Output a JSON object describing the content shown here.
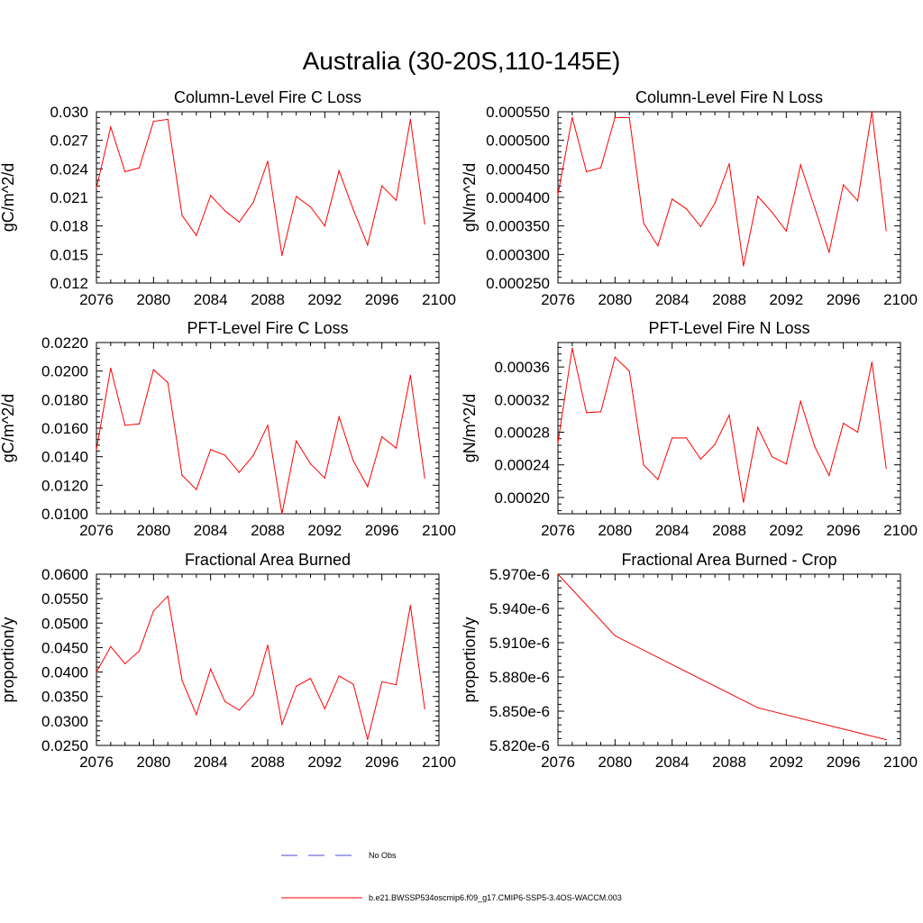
{
  "title": "Australia (30-20S,110-145E)",
  "colors": {
    "series": "#ff0000",
    "obs": "#4a4ad0",
    "axis": "#000000"
  },
  "legend": {
    "entries": [
      {
        "label": "No Obs",
        "style": "dashed",
        "color": "#4a4ad0"
      },
      {
        "label": "b.e21.BWSSP534oscmip6.f09_g17.CMIP6-SSP5-3.4OS-WACCM.003",
        "style": "solid",
        "color": "#ff0000"
      }
    ]
  },
  "chart_data": [
    {
      "type": "line",
      "title": "Column-Level Fire C Loss",
      "ylabel": "gC/m^2/d",
      "xlim": [
        2076,
        2100
      ],
      "xticks": [
        "2076",
        "2080",
        "2084",
        "2088",
        "2092",
        "2096",
        "2100"
      ],
      "ylim": [
        0.012,
        0.03
      ],
      "yticks": [
        "0.030",
        "0.027",
        "0.024",
        "0.021",
        "0.018",
        "0.015",
        "0.012"
      ],
      "x": [
        2076,
        2077,
        2078,
        2079,
        2080,
        2081,
        2082,
        2083,
        2084,
        2085,
        2086,
        2087,
        2088,
        2089,
        2090,
        2091,
        2092,
        2093,
        2094,
        2095,
        2096,
        2097,
        2098,
        2099
      ],
      "values": [
        0.022,
        0.0284,
        0.0237,
        0.0241,
        0.029,
        0.0292,
        0.0191,
        0.017,
        0.0212,
        0.0196,
        0.0184,
        0.0205,
        0.0248,
        0.0149,
        0.0211,
        0.02,
        0.018,
        0.0238,
        0.0197,
        0.016,
        0.0222,
        0.0207,
        0.0292,
        0.0182
      ]
    },
    {
      "type": "line",
      "title": "Column-Level Fire N Loss",
      "ylabel": "gN/m^2/d",
      "xlim": [
        2076,
        2100
      ],
      "xticks": [
        "2076",
        "2080",
        "2084",
        "2088",
        "2092",
        "2096",
        "2100"
      ],
      "ylim": [
        0.00025,
        0.00055
      ],
      "yticks": [
        "0.000550",
        "0.000500",
        "0.000450",
        "0.000400",
        "0.000350",
        "0.000300",
        "0.000250"
      ],
      "x": [
        2076,
        2077,
        2078,
        2079,
        2080,
        2081,
        2082,
        2083,
        2084,
        2085,
        2086,
        2087,
        2088,
        2089,
        2090,
        2091,
        2092,
        2093,
        2094,
        2095,
        2096,
        2097,
        2098,
        2099
      ],
      "values": [
        0.000405,
        0.00054,
        0.000445,
        0.000452,
        0.00054,
        0.00054,
        0.000355,
        0.000315,
        0.000397,
        0.00038,
        0.000349,
        0.00039,
        0.000459,
        0.00028,
        0.000402,
        0.000374,
        0.000341,
        0.000457,
        0.000381,
        0.000304,
        0.000422,
        0.000394,
        0.00055,
        0.000342
      ]
    },
    {
      "type": "line",
      "title": "PFT-Level Fire C Loss",
      "ylabel": "gC/m^2/d",
      "xlim": [
        2076,
        2100
      ],
      "xticks": [
        "2076",
        "2080",
        "2084",
        "2088",
        "2092",
        "2096",
        "2100"
      ],
      "ylim": [
        0.01,
        0.022
      ],
      "yticks": [
        "0.0220",
        "0.0200",
        "0.0180",
        "0.0160",
        "0.0140",
        "0.0120",
        "0.0100"
      ],
      "x": [
        2076,
        2077,
        2078,
        2079,
        2080,
        2081,
        2082,
        2083,
        2084,
        2085,
        2086,
        2087,
        2088,
        2089,
        2090,
        2091,
        2092,
        2093,
        2094,
        2095,
        2096,
        2097,
        2098,
        2099
      ],
      "values": [
        0.0145,
        0.0202,
        0.0162,
        0.0163,
        0.0201,
        0.0192,
        0.0127,
        0.0117,
        0.0145,
        0.0141,
        0.0129,
        0.0141,
        0.0162,
        0.01,
        0.0151,
        0.0135,
        0.0125,
        0.0168,
        0.0137,
        0.0119,
        0.0154,
        0.0146,
        0.0197,
        0.0125
      ]
    },
    {
      "type": "line",
      "title": "PFT-Level Fire N Loss",
      "ylabel": "gN/m^2/d",
      "xlim": [
        2076,
        2100
      ],
      "xticks": [
        "2076",
        "2080",
        "2084",
        "2088",
        "2092",
        "2096",
        "2100"
      ],
      "ylim": [
        0.00018,
        0.00039
      ],
      "yticks": [
        "0.00036",
        "0.00032",
        "0.00028",
        "0.00024",
        "0.00020"
      ],
      "x": [
        2076,
        2077,
        2078,
        2079,
        2080,
        2081,
        2082,
        2083,
        2084,
        2085,
        2086,
        2087,
        2088,
        2089,
        2090,
        2091,
        2092,
        2093,
        2094,
        2095,
        2096,
        2097,
        2098,
        2099
      ],
      "values": [
        0.000267,
        0.000383,
        0.000304,
        0.000305,
        0.000372,
        0.000355,
        0.00024,
        0.000222,
        0.000273,
        0.000273,
        0.000247,
        0.000265,
        0.000301,
        0.000194,
        0.000286,
        0.00025,
        0.000241,
        0.000318,
        0.000262,
        0.000227,
        0.000291,
        0.00028,
        0.000366,
        0.000236
      ]
    },
    {
      "type": "line",
      "title": "Fractional Area Burned",
      "ylabel": "proportion/y",
      "xlim": [
        2076,
        2100
      ],
      "xticks": [
        "2076",
        "2080",
        "2084",
        "2088",
        "2092",
        "2096",
        "2100"
      ],
      "ylim": [
        0.025,
        0.06
      ],
      "yticks": [
        "0.0600",
        "0.0550",
        "0.0500",
        "0.0450",
        "0.0400",
        "0.0350",
        "0.0300",
        "0.0250"
      ],
      "x": [
        2076,
        2077,
        2078,
        2079,
        2080,
        2081,
        2082,
        2083,
        2084,
        2085,
        2086,
        2087,
        2088,
        2089,
        2090,
        2091,
        2092,
        2093,
        2094,
        2095,
        2096,
        2097,
        2098,
        2099
      ],
      "values": [
        0.04,
        0.0452,
        0.0417,
        0.0443,
        0.0525,
        0.0555,
        0.0383,
        0.0313,
        0.0406,
        0.034,
        0.0322,
        0.0354,
        0.0455,
        0.0293,
        0.0371,
        0.0387,
        0.0325,
        0.0392,
        0.0375,
        0.0262,
        0.038,
        0.0374,
        0.0536,
        0.0325
      ]
    },
    {
      "type": "line",
      "title": "Fractional Area Burned - Crop",
      "ylabel": "proportion/y",
      "xlim": [
        2076,
        2100
      ],
      "xticks": [
        "2076",
        "2080",
        "2084",
        "2088",
        "2092",
        "2096",
        "2100"
      ],
      "ylim": [
        5.82e-06,
        5.97e-06
      ],
      "yticks": [
        "5.970e-6",
        "5.940e-6",
        "5.910e-6",
        "5.880e-6",
        "5.850e-6",
        "5.820e-6"
      ],
      "x": [
        2076,
        2080,
        2090,
        2099
      ],
      "values": [
        5.97e-06,
        5.916e-06,
        5.853e-06,
        5.825e-06
      ]
    }
  ]
}
